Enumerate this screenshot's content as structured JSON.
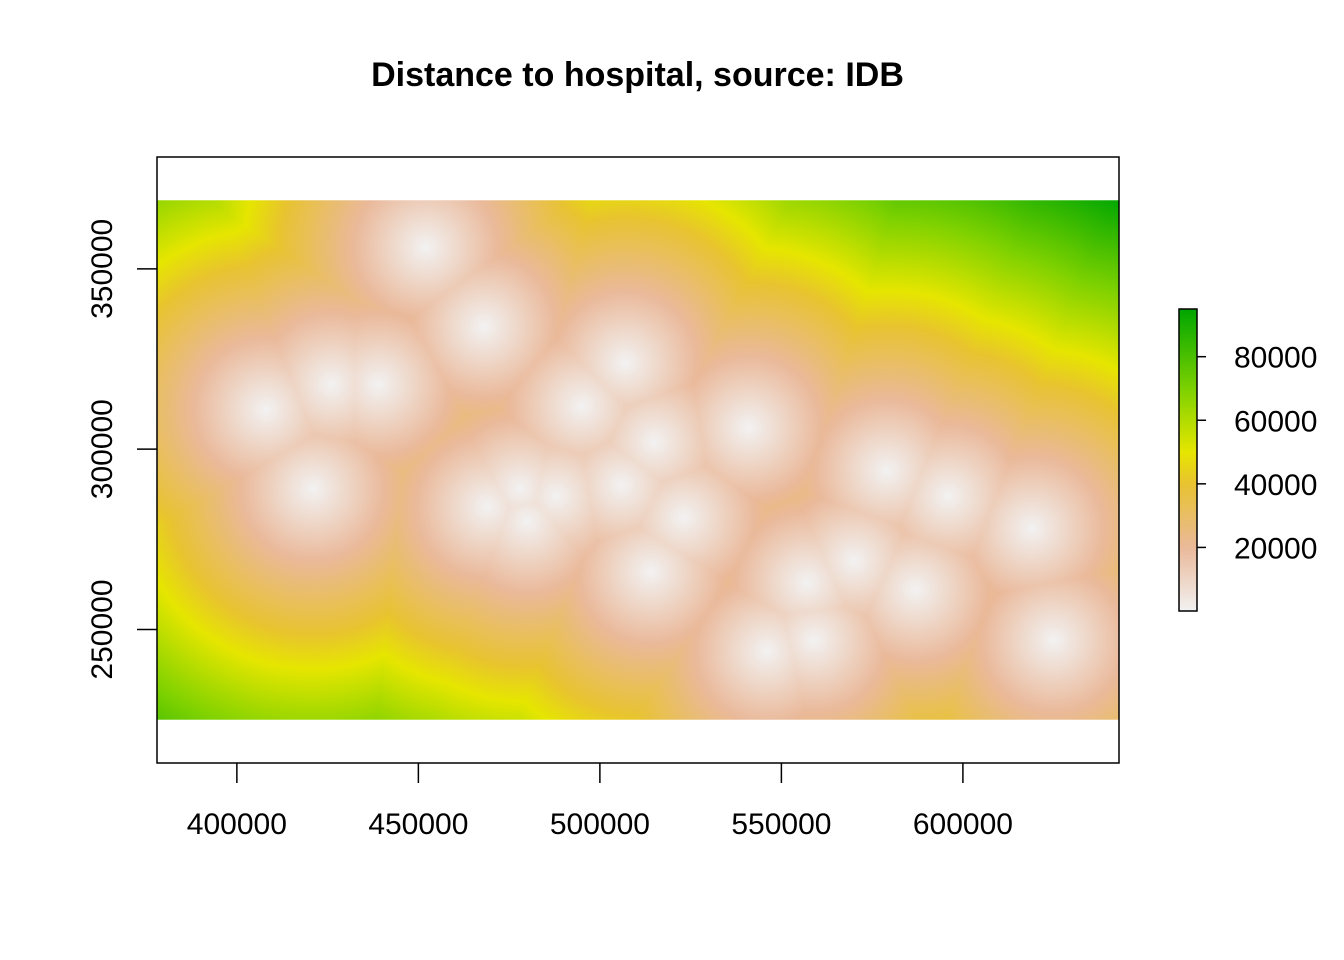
{
  "chart_data": {
    "type": "heatmap",
    "title": "Distance to hospital, source: IDB",
    "xlabel": "",
    "ylabel": "",
    "xlim": [
      378000,
      643000
    ],
    "ylim": [
      213000,
      381000
    ],
    "raster_extent": {
      "x": [
        378000,
        643000
      ],
      "y": [
        225000,
        369000
      ]
    },
    "x_ticks": [
      400000,
      450000,
      500000,
      550000,
      600000
    ],
    "x_tick_labels": [
      "400000",
      "450000",
      "500000",
      "550000",
      "600000"
    ],
    "y_ticks": [
      250000,
      300000,
      350000
    ],
    "y_tick_labels": [
      "250000",
      "300000",
      "350000"
    ],
    "legend": {
      "placement": "right",
      "range": [
        0,
        95000
      ],
      "ticks": [
        20000,
        40000,
        60000,
        80000
      ],
      "tick_labels": [
        "20000",
        "40000",
        "60000",
        "80000"
      ]
    },
    "colorscale": [
      {
        "value": 0,
        "color": "#f2f2f2"
      },
      {
        "value": 20000,
        "color": "#eab99a"
      },
      {
        "value": 40000,
        "color": "#e8c331"
      },
      {
        "value": 50000,
        "color": "#e6e600"
      },
      {
        "value": 70000,
        "color": "#7dd100"
      },
      {
        "value": 95000,
        "color": "#00a600"
      }
    ],
    "hospitals": [
      {
        "x": 452000,
        "y": 356000
      },
      {
        "x": 468000,
        "y": 334000
      },
      {
        "x": 408000,
        "y": 311000
      },
      {
        "x": 426000,
        "y": 318000
      },
      {
        "x": 439000,
        "y": 318000
      },
      {
        "x": 421000,
        "y": 289000
      },
      {
        "x": 469000,
        "y": 284000
      },
      {
        "x": 478000,
        "y": 289000
      },
      {
        "x": 480000,
        "y": 280000
      },
      {
        "x": 488000,
        "y": 287000
      },
      {
        "x": 495000,
        "y": 312000
      },
      {
        "x": 507000,
        "y": 324000
      },
      {
        "x": 515000,
        "y": 302000
      },
      {
        "x": 506000,
        "y": 290000
      },
      {
        "x": 523000,
        "y": 281000
      },
      {
        "x": 514000,
        "y": 266000
      },
      {
        "x": 541000,
        "y": 306000
      },
      {
        "x": 557000,
        "y": 263000
      },
      {
        "x": 570000,
        "y": 269000
      },
      {
        "x": 546000,
        "y": 244000
      },
      {
        "x": 559000,
        "y": 247000
      },
      {
        "x": 579000,
        "y": 294000
      },
      {
        "x": 587000,
        "y": 261000
      },
      {
        "x": 596000,
        "y": 287000
      },
      {
        "x": 619000,
        "y": 278000
      },
      {
        "x": 625000,
        "y": 247000
      }
    ]
  }
}
